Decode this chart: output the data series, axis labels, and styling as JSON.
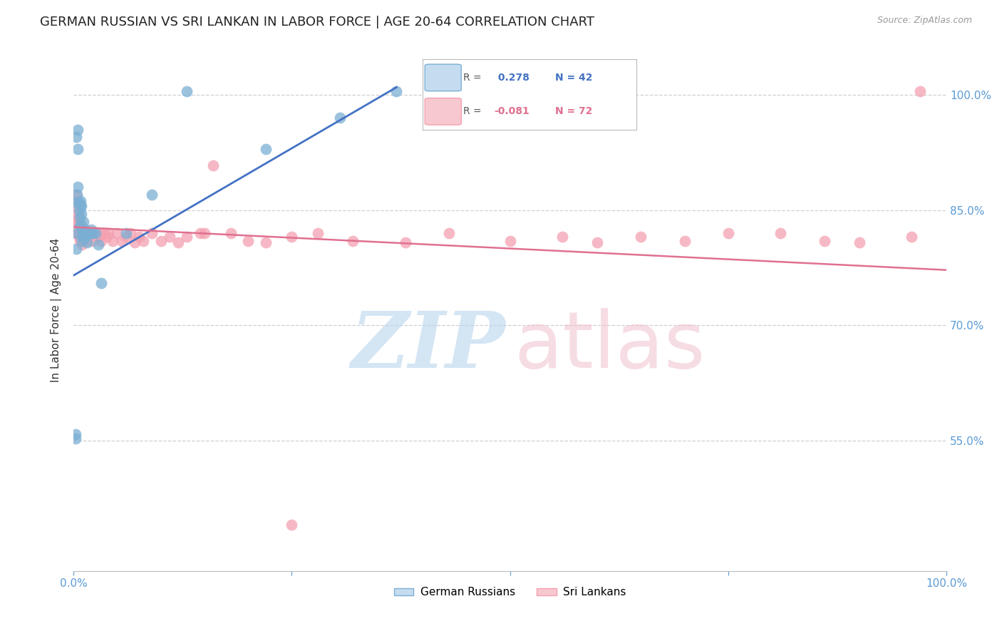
{
  "title": "GERMAN RUSSIAN VS SRI LANKAN IN LABOR FORCE | AGE 20-64 CORRELATION CHART",
  "source": "Source: ZipAtlas.com",
  "ylabel": "In Labor Force | Age 20-64",
  "xlim": [
    0.0,
    1.0
  ],
  "ylim": [
    0.38,
    1.06
  ],
  "yticks": [
    0.55,
    0.7,
    0.85,
    1.0
  ],
  "ytick_labels": [
    "55.0%",
    "70.0%",
    "85.0%",
    "100.0%"
  ],
  "xtick_labels": [
    "0.0%",
    "100.0%"
  ],
  "blue_color": "#7bafd4",
  "pink_color": "#f4a0b0",
  "blue_line_color": "#4472c4",
  "pink_line_color": "#e07090",
  "legend_blue_label": "German Russians",
  "legend_pink_label": "Sri Lankans",
  "blue_R_text": "R =",
  "blue_R_val": " 0.278",
  "blue_N_text": "N = 42",
  "pink_R_text": "R =",
  "pink_R_val": "-0.081",
  "pink_N_text": "N = 72",
  "blue_line_x": [
    0.0,
    0.37
  ],
  "blue_line_y": [
    0.765,
    1.01
  ],
  "pink_line_x": [
    0.0,
    1.0
  ],
  "pink_line_y": [
    0.828,
    0.772
  ],
  "watermark_zip": "ZIP",
  "watermark_atlas": "atlas",
  "background_color": "#ffffff",
  "grid_color": "#d0d0d0",
  "axis_color": "#5b9bd5",
  "title_fontsize": 13,
  "axis_label_fontsize": 11,
  "tick_fontsize": 11,
  "blue_x": [
    0.002,
    0.002,
    0.003,
    0.003,
    0.004,
    0.004,
    0.004,
    0.005,
    0.005,
    0.005,
    0.006,
    0.006,
    0.007,
    0.007,
    0.008,
    0.008,
    0.009,
    0.009,
    0.009,
    0.01,
    0.01,
    0.01,
    0.011,
    0.011,
    0.012,
    0.013,
    0.014,
    0.015,
    0.016,
    0.017,
    0.018,
    0.02,
    0.022,
    0.025,
    0.028,
    0.032,
    0.06,
    0.09,
    0.13,
    0.22,
    0.305,
    0.37
  ],
  "blue_y": [
    0.553,
    0.558,
    0.8,
    0.945,
    0.82,
    0.86,
    0.87,
    0.93,
    0.955,
    0.88,
    0.85,
    0.86,
    0.84,
    0.83,
    0.856,
    0.862,
    0.83,
    0.845,
    0.855,
    0.81,
    0.815,
    0.825,
    0.82,
    0.835,
    0.82,
    0.815,
    0.825,
    0.808,
    0.82,
    0.82,
    0.82,
    0.825,
    0.82,
    0.82,
    0.805,
    0.755,
    0.82,
    0.87,
    1.005,
    0.93,
    0.97,
    1.005
  ],
  "pink_x": [
    0.002,
    0.002,
    0.003,
    0.003,
    0.004,
    0.004,
    0.005,
    0.005,
    0.005,
    0.006,
    0.006,
    0.007,
    0.007,
    0.008,
    0.008,
    0.009,
    0.009,
    0.01,
    0.01,
    0.011,
    0.011,
    0.012,
    0.013,
    0.014,
    0.015,
    0.016,
    0.018,
    0.02,
    0.022,
    0.025,
    0.028,
    0.03,
    0.032,
    0.035,
    0.038,
    0.04,
    0.045,
    0.05,
    0.055,
    0.06,
    0.065,
    0.07,
    0.075,
    0.08,
    0.09,
    0.1,
    0.11,
    0.12,
    0.13,
    0.145,
    0.16,
    0.18,
    0.2,
    0.15,
    0.22,
    0.25,
    0.28,
    0.32,
    0.38,
    0.43,
    0.5,
    0.56,
    0.6,
    0.65,
    0.7,
    0.75,
    0.81,
    0.86,
    0.9,
    0.96,
    0.25,
    0.97
  ],
  "pink_y": [
    0.82,
    0.835,
    0.86,
    0.87,
    0.84,
    0.855,
    0.82,
    0.835,
    0.845,
    0.815,
    0.825,
    0.81,
    0.82,
    0.815,
    0.825,
    0.81,
    0.82,
    0.805,
    0.82,
    0.815,
    0.825,
    0.82,
    0.815,
    0.82,
    0.81,
    0.82,
    0.815,
    0.82,
    0.81,
    0.82,
    0.815,
    0.82,
    0.81,
    0.82,
    0.815,
    0.82,
    0.81,
    0.82,
    0.81,
    0.815,
    0.82,
    0.808,
    0.815,
    0.81,
    0.82,
    0.81,
    0.815,
    0.808,
    0.815,
    0.82,
    0.908,
    0.82,
    0.81,
    0.82,
    0.808,
    0.815,
    0.82,
    0.81,
    0.808,
    0.82,
    0.81,
    0.815,
    0.808,
    0.815,
    0.81,
    0.82,
    0.82,
    0.81,
    0.808,
    0.815,
    0.44,
    1.005
  ]
}
